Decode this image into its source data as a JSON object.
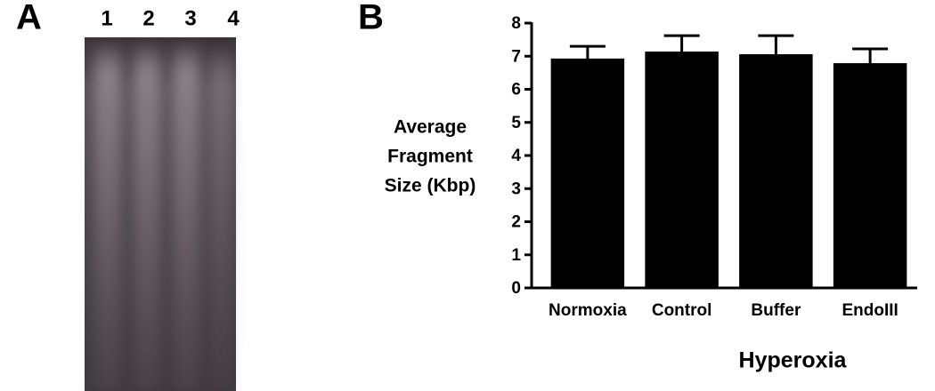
{
  "panels": {
    "gel": {
      "label": "A",
      "lanes": [
        "1",
        "2",
        "3",
        "4"
      ]
    },
    "chart": {
      "label": "B"
    }
  },
  "chart_data": {
    "type": "bar",
    "ylabel": [
      "Average",
      "Fragment",
      "Size (Kbp)"
    ],
    "xlabel": "Hyperoxia",
    "categories": [
      "Normoxia",
      "Control",
      "Buffer",
      "EndoIII"
    ],
    "values": [
      6.93,
      7.14,
      7.06,
      6.79
    ],
    "errors": [
      0.37,
      0.48,
      0.56,
      0.43
    ],
    "color": "#000000",
    "ylim": [
      0,
      8
    ],
    "yticks": [
      0,
      1,
      2,
      3,
      4,
      5,
      6,
      7,
      8
    ]
  }
}
